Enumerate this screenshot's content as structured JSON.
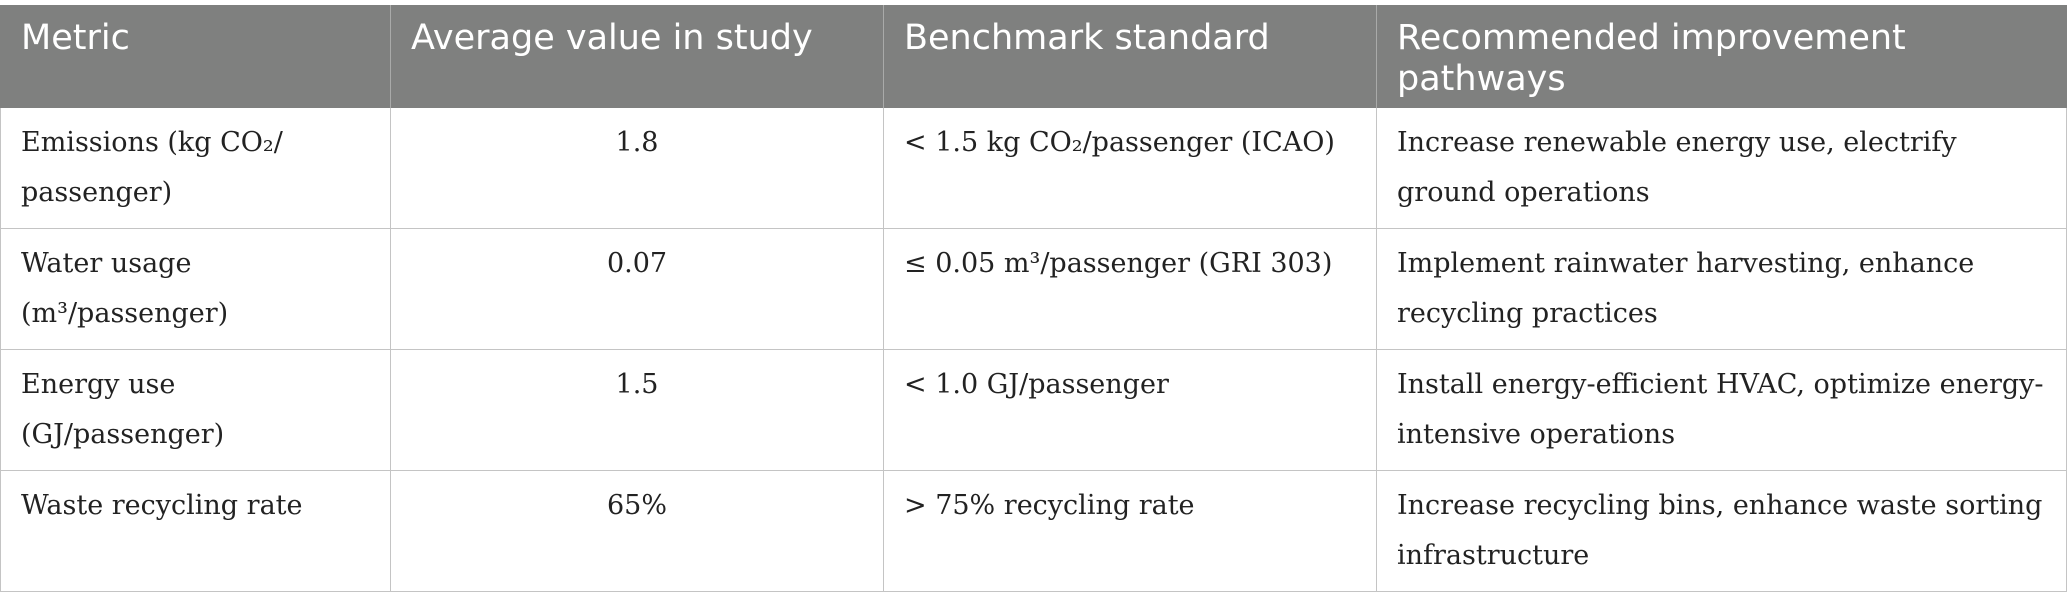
{
  "table": {
    "headers": [
      "Metric",
      "Average value in study",
      "Benchmark standard",
      "Recommended improvement pathways"
    ],
    "rows": [
      {
        "metric": "Emissions (kg CO₂/ passenger)",
        "average": "1.8",
        "benchmark": "< 1.5 kg CO₂/passenger (ICAO)",
        "pathway": "Increase renewable energy use, electrify ground operations"
      },
      {
        "metric": "Water usage (m³/passenger)",
        "average": "0.07",
        "benchmark": "≤ 0.05 m³/passenger (GRI 303)",
        "pathway": "Implement rainwater harvesting, enhance recycling practices"
      },
      {
        "metric": "Energy use (GJ/passenger)",
        "average": "1.5",
        "benchmark": "< 1.0 GJ/passenger",
        "pathway": "Install energy-efficient HVAC, optimize energy-intensive operations"
      },
      {
        "metric": "Waste recycling rate",
        "average": "65%",
        "benchmark": "> 75% recycling rate",
        "pathway": "Increase recycling bins, enhance waste sorting infrastructure"
      }
    ]
  }
}
